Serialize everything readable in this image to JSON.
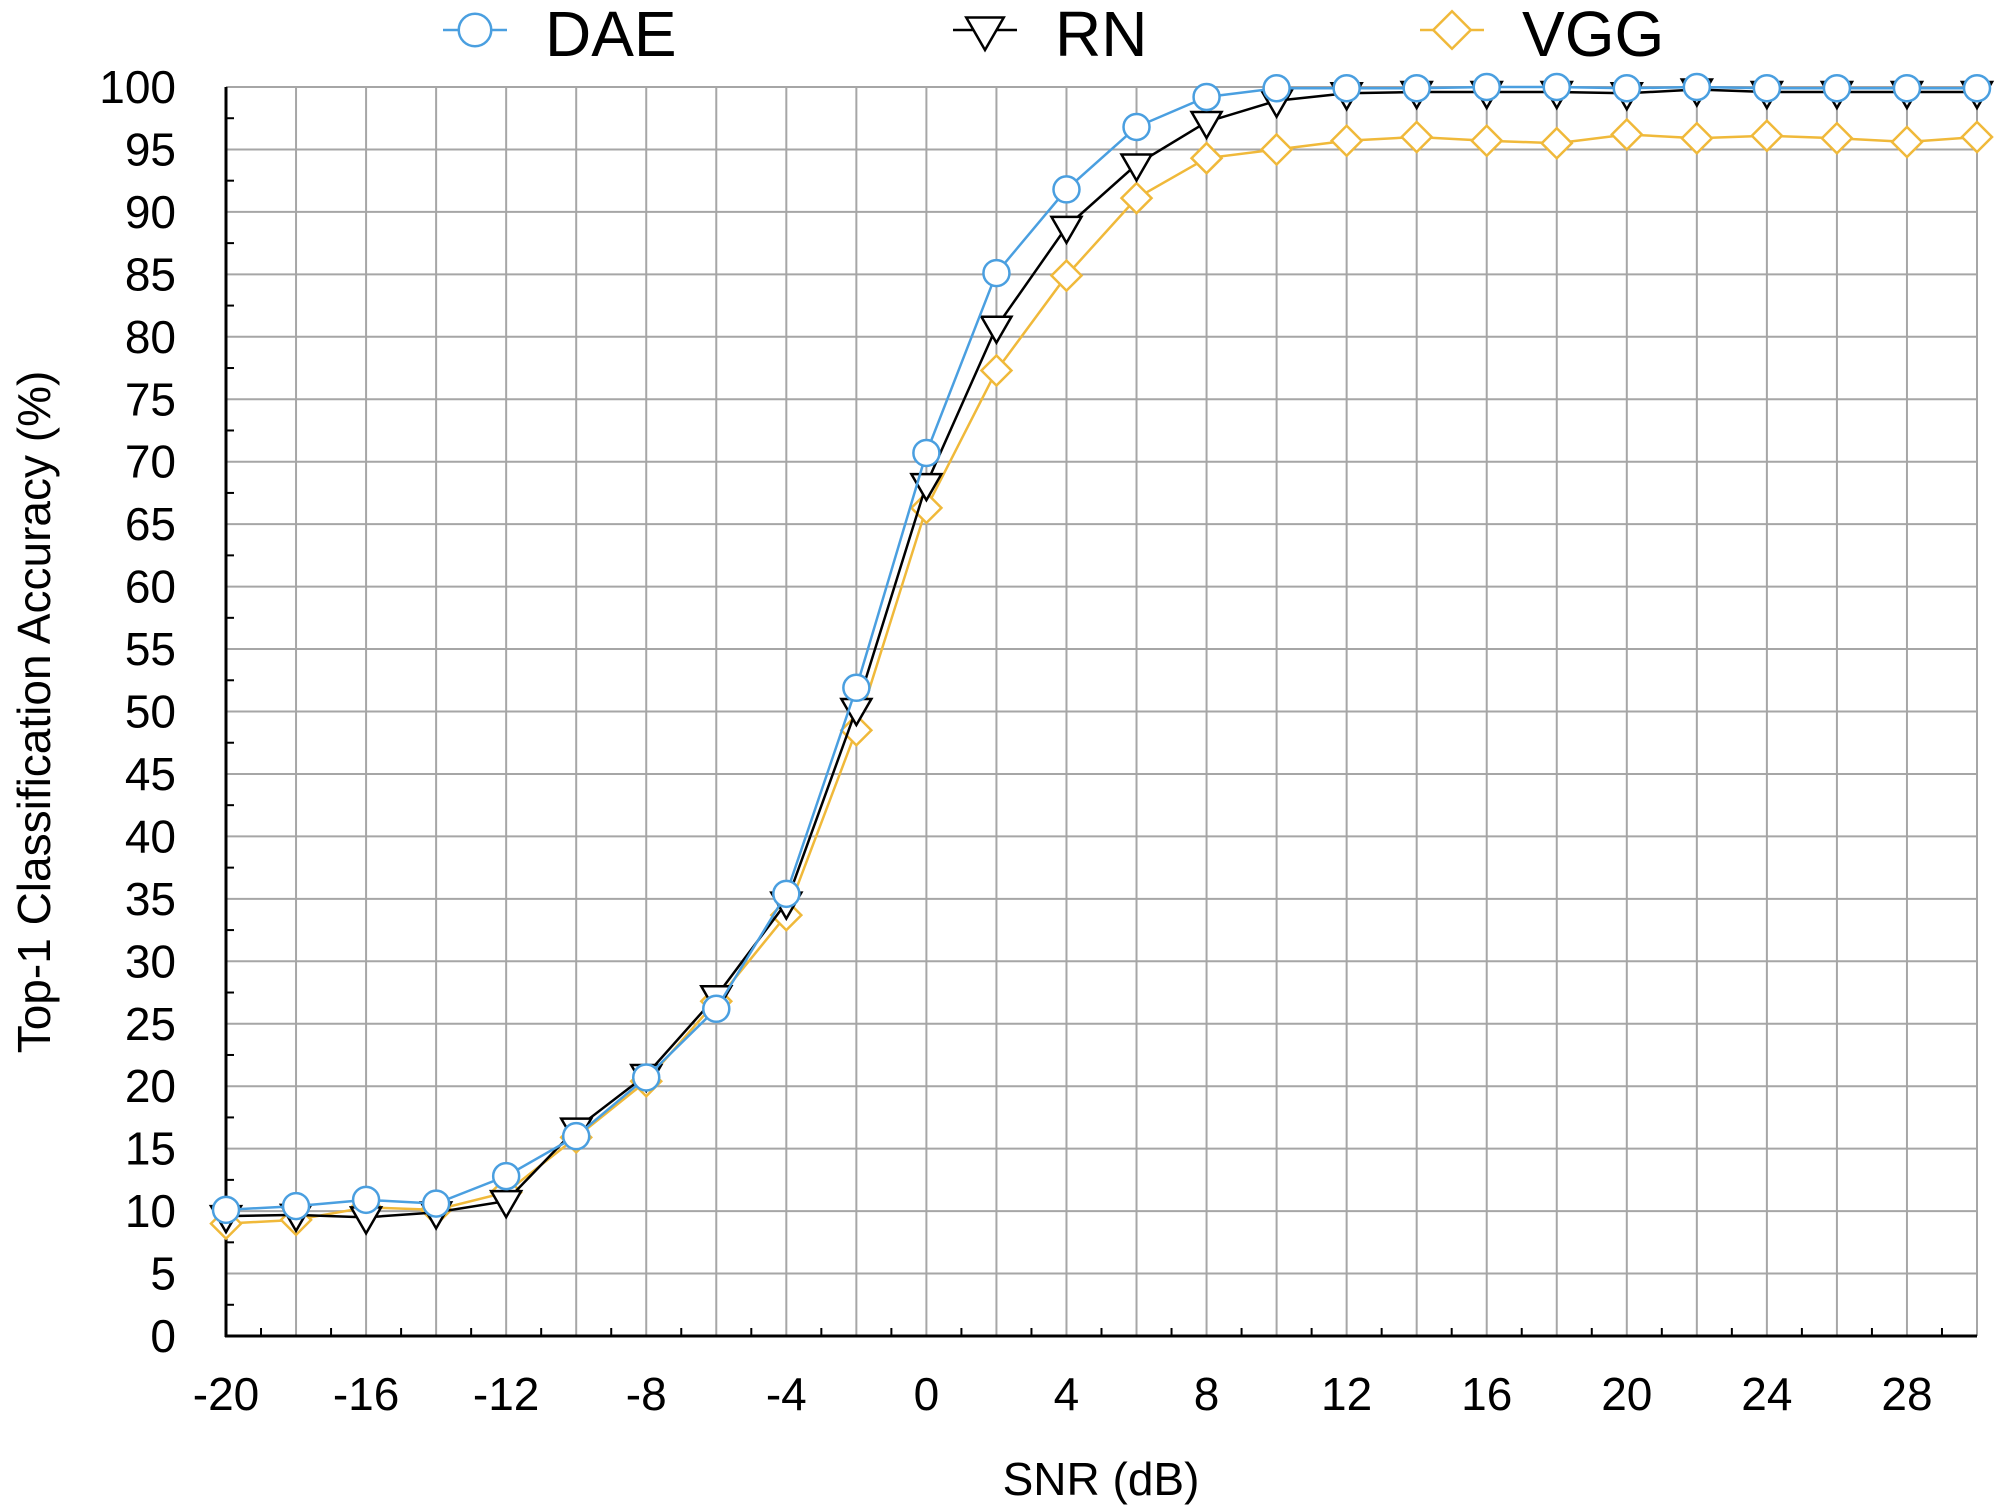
{
  "chart_data": {
    "type": "line",
    "title": "",
    "xlabel": "SNR (dB)",
    "ylabel": "Top-1 Classification Accuracy (%)",
    "xlim": [
      -20,
      30
    ],
    "ylim": [
      0,
      100
    ],
    "x_ticks": [
      "-20",
      "-16",
      "-12",
      "-8",
      "-4",
      "0",
      "4",
      "8",
      "12",
      "16",
      "20",
      "24",
      "28"
    ],
    "y_ticks": [
      "0",
      "5",
      "10",
      "15",
      "20",
      "25",
      "30",
      "35",
      "40",
      "45",
      "50",
      "55",
      "60",
      "65",
      "70",
      "75",
      "80",
      "85",
      "90",
      "95",
      "100"
    ],
    "grid": true,
    "legend_position": "top",
    "x": [
      -20,
      -18,
      -16,
      -14,
      -12,
      -10,
      -8,
      -6,
      -4,
      -2,
      0,
      2,
      4,
      6,
      8,
      10,
      12,
      14,
      16,
      18,
      20,
      22,
      24,
      26,
      28,
      30
    ],
    "series": [
      {
        "name": "DAE",
        "marker": "circle",
        "color": "#4a9fe0",
        "values": [
          10.1,
          10.4,
          10.9,
          10.6,
          12.8,
          16.0,
          20.7,
          26.2,
          35.4,
          51.9,
          70.7,
          85.1,
          91.8,
          96.8,
          99.2,
          99.9,
          99.9,
          99.9,
          100.0,
          100.0,
          99.9,
          100.0,
          99.9,
          99.9,
          99.9,
          99.9
        ]
      },
      {
        "name": "RN",
        "marker": "triangle-down",
        "color": "#000000",
        "values": [
          9.6,
          9.7,
          9.5,
          9.9,
          10.8,
          16.6,
          20.9,
          27.2,
          34.7,
          50.2,
          68.2,
          80.8,
          88.8,
          93.8,
          97.2,
          98.9,
          99.5,
          99.6,
          99.6,
          99.6,
          99.5,
          99.8,
          99.6,
          99.6,
          99.6,
          99.6
        ]
      },
      {
        "name": "VGG",
        "marker": "diamond",
        "color": "#f0b93a",
        "values": [
          9.0,
          9.3,
          10.3,
          10.1,
          11.5,
          15.9,
          20.4,
          26.8,
          33.7,
          48.5,
          66.3,
          77.3,
          84.9,
          91.1,
          94.3,
          95.0,
          95.7,
          96.0,
          95.7,
          95.5,
          96.2,
          95.9,
          96.1,
          95.9,
          95.6,
          96.0
        ]
      }
    ]
  }
}
